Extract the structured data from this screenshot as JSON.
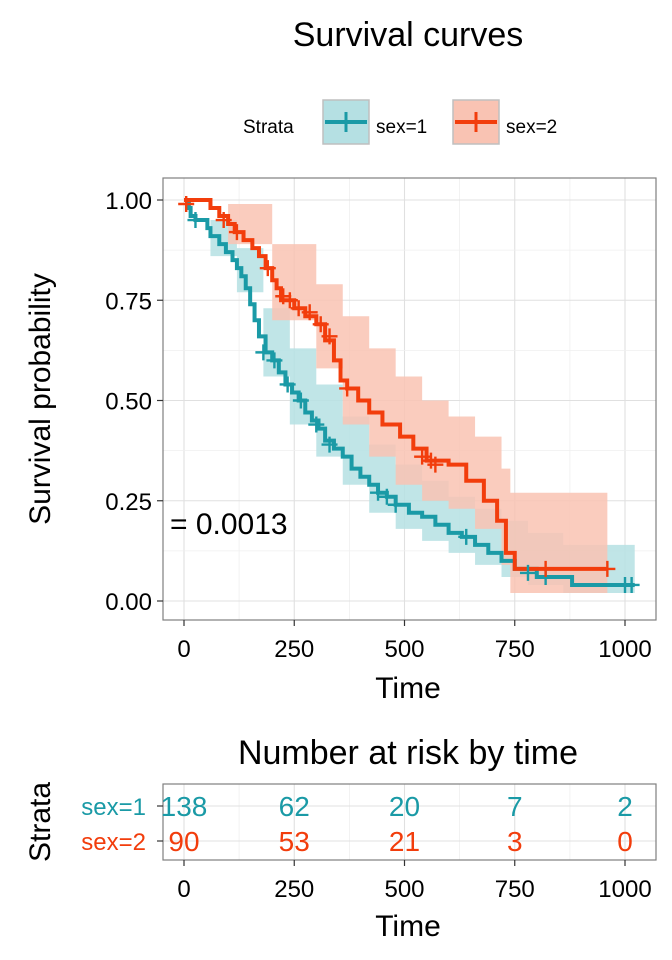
{
  "chart_data": [
    {
      "type": "line",
      "subtype": "kaplan-meier",
      "title": "Survival curves",
      "xlabel": "Time",
      "ylabel": "Survival probability",
      "xlim": [
        0,
        1022
      ],
      "ylim": [
        0,
        1
      ],
      "x_ticks": [
        0,
        250,
        500,
        750,
        1000
      ],
      "y_ticks": [
        0.0,
        0.25,
        0.5,
        0.75,
        1.0
      ],
      "x_tick_labels": [
        "0",
        "250",
        "500",
        "750",
        "1000"
      ],
      "y_tick_labels": [
        "0.00",
        "0.25",
        "0.50",
        "0.75",
        "1.00"
      ],
      "grid": true,
      "legend": {
        "title": "Strata",
        "position": "top",
        "entries": [
          "sex=1",
          "sex=2"
        ]
      },
      "annotation": "= 0.0013",
      "series": [
        {
          "name": "sex=1",
          "color": "#1a9aa6",
          "ci_color": "#b5e0e3",
          "steps": [
            [
              0,
              1.0
            ],
            [
              11,
              0.98
            ],
            [
              15,
              0.96
            ],
            [
              26,
              0.95
            ],
            [
              53,
              0.93
            ],
            [
              60,
              0.91
            ],
            [
              80,
              0.89
            ],
            [
              95,
              0.87
            ],
            [
              110,
              0.85
            ],
            [
              120,
              0.83
            ],
            [
              130,
              0.81
            ],
            [
              140,
              0.78
            ],
            [
              150,
              0.74
            ],
            [
              160,
              0.7
            ],
            [
              170,
              0.66
            ],
            [
              185,
              0.62
            ],
            [
              200,
              0.6
            ],
            [
              215,
              0.57
            ],
            [
              230,
              0.54
            ],
            [
              245,
              0.52
            ],
            [
              260,
              0.5
            ],
            [
              275,
              0.47
            ],
            [
              290,
              0.45
            ],
            [
              305,
              0.43
            ],
            [
              320,
              0.4
            ],
            [
              340,
              0.38
            ],
            [
              360,
              0.36
            ],
            [
              380,
              0.33
            ],
            [
              400,
              0.31
            ],
            [
              420,
              0.29
            ],
            [
              440,
              0.27
            ],
            [
              460,
              0.26
            ],
            [
              480,
              0.24
            ],
            [
              510,
              0.22
            ],
            [
              540,
              0.21
            ],
            [
              570,
              0.19
            ],
            [
              600,
              0.17
            ],
            [
              630,
              0.16
            ],
            [
              660,
              0.14
            ],
            [
              690,
              0.12
            ],
            [
              720,
              0.1
            ],
            [
              750,
              0.08
            ],
            [
              800,
              0.06
            ],
            [
              880,
              0.04
            ],
            [
              1022,
              0.04
            ]
          ],
          "ci_upper": [
            [
              0,
              1.0
            ],
            [
              60,
              0.95
            ],
            [
              120,
              0.88
            ],
            [
              180,
              0.73
            ],
            [
              240,
              0.63
            ],
            [
              300,
              0.54
            ],
            [
              360,
              0.46
            ],
            [
              420,
              0.39
            ],
            [
              480,
              0.34
            ],
            [
              540,
              0.3
            ],
            [
              600,
              0.26
            ],
            [
              660,
              0.23
            ],
            [
              720,
              0.2
            ],
            [
              780,
              0.17
            ],
            [
              860,
              0.14
            ],
            [
              1022,
              0.12
            ]
          ],
          "ci_lower": [
            [
              0,
              1.0
            ],
            [
              60,
              0.86
            ],
            [
              120,
              0.77
            ],
            [
              180,
              0.56
            ],
            [
              240,
              0.44
            ],
            [
              300,
              0.36
            ],
            [
              360,
              0.29
            ],
            [
              420,
              0.22
            ],
            [
              480,
              0.18
            ],
            [
              540,
              0.15
            ],
            [
              600,
              0.12
            ],
            [
              660,
              0.09
            ],
            [
              720,
              0.06
            ],
            [
              780,
              0.04
            ],
            [
              860,
              0.02
            ],
            [
              1022,
              0.01
            ]
          ],
          "censor": [
            [
              26,
              0.95
            ],
            [
              180,
              0.62
            ],
            [
              205,
              0.6
            ],
            [
              235,
              0.54
            ],
            [
              265,
              0.5
            ],
            [
              300,
              0.44
            ],
            [
              330,
              0.39
            ],
            [
              440,
              0.27
            ],
            [
              460,
              0.26
            ],
            [
              480,
              0.24
            ],
            [
              640,
              0.16
            ],
            [
              780,
              0.07
            ],
            [
              820,
              0.06
            ],
            [
              1000,
              0.04
            ],
            [
              1015,
              0.04
            ]
          ]
        },
        {
          "name": "sex=2",
          "color": "#f23d0c",
          "ci_color": "#f9c3b3",
          "steps": [
            [
              0,
              1.0
            ],
            [
              60,
              0.98
            ],
            [
              80,
              0.96
            ],
            [
              100,
              0.94
            ],
            [
              115,
              0.92
            ],
            [
              135,
              0.9
            ],
            [
              155,
              0.88
            ],
            [
              170,
              0.86
            ],
            [
              185,
              0.83
            ],
            [
              200,
              0.8
            ],
            [
              210,
              0.78
            ],
            [
              220,
              0.75
            ],
            [
              250,
              0.73
            ],
            [
              275,
              0.71
            ],
            [
              300,
              0.69
            ],
            [
              320,
              0.65
            ],
            [
              340,
              0.6
            ],
            [
              355,
              0.55
            ],
            [
              370,
              0.53
            ],
            [
              395,
              0.5
            ],
            [
              420,
              0.47
            ],
            [
              450,
              0.44
            ],
            [
              490,
              0.41
            ],
            [
              520,
              0.38
            ],
            [
              550,
              0.35
            ],
            [
              600,
              0.34
            ],
            [
              640,
              0.3
            ],
            [
              680,
              0.25
            ],
            [
              710,
              0.2
            ],
            [
              730,
              0.12
            ],
            [
              750,
              0.08
            ],
            [
              960,
              0.08
            ]
          ],
          "ci_upper": [
            [
              0,
              1.0
            ],
            [
              100,
              0.99
            ],
            [
              200,
              0.89
            ],
            [
              300,
              0.79
            ],
            [
              360,
              0.71
            ],
            [
              420,
              0.63
            ],
            [
              480,
              0.56
            ],
            [
              540,
              0.5
            ],
            [
              600,
              0.46
            ],
            [
              660,
              0.41
            ],
            [
              720,
              0.33
            ],
            [
              740,
              0.27
            ],
            [
              960,
              0.27
            ]
          ],
          "ci_lower": [
            [
              0,
              1.0
            ],
            [
              100,
              0.89
            ],
            [
              200,
              0.7
            ],
            [
              300,
              0.58
            ],
            [
              360,
              0.44
            ],
            [
              420,
              0.36
            ],
            [
              480,
              0.29
            ],
            [
              540,
              0.25
            ],
            [
              600,
              0.23
            ],
            [
              660,
              0.18
            ],
            [
              720,
              0.09
            ],
            [
              740,
              0.02
            ],
            [
              960,
              0.02
            ]
          ],
          "censor": [
            [
              5,
              0.99
            ],
            [
              90,
              0.95
            ],
            [
              120,
              0.92
            ],
            [
              190,
              0.83
            ],
            [
              225,
              0.76
            ],
            [
              240,
              0.75
            ],
            [
              260,
              0.73
            ],
            [
              285,
              0.72
            ],
            [
              310,
              0.69
            ],
            [
              330,
              0.66
            ],
            [
              370,
              0.53
            ],
            [
              540,
              0.36
            ],
            [
              560,
              0.35
            ],
            [
              570,
              0.34
            ],
            [
              820,
              0.08
            ],
            [
              960,
              0.08
            ]
          ]
        }
      ]
    },
    {
      "type": "table",
      "title": "Number at risk by time",
      "xlabel": "Time",
      "ylabel": "Strata",
      "x_ticks": [
        0,
        250,
        500,
        750,
        1000
      ],
      "x_tick_labels": [
        "0",
        "250",
        "500",
        "750",
        "1000"
      ],
      "rows": [
        {
          "name": "sex=1",
          "color": "#1a9aa6",
          "values": [
            "138",
            "62",
            "20",
            "7",
            "2"
          ]
        },
        {
          "name": "sex=2",
          "color": "#f23d0c",
          "values": [
            "90",
            "53",
            "21",
            "3",
            "0"
          ]
        }
      ]
    }
  ]
}
